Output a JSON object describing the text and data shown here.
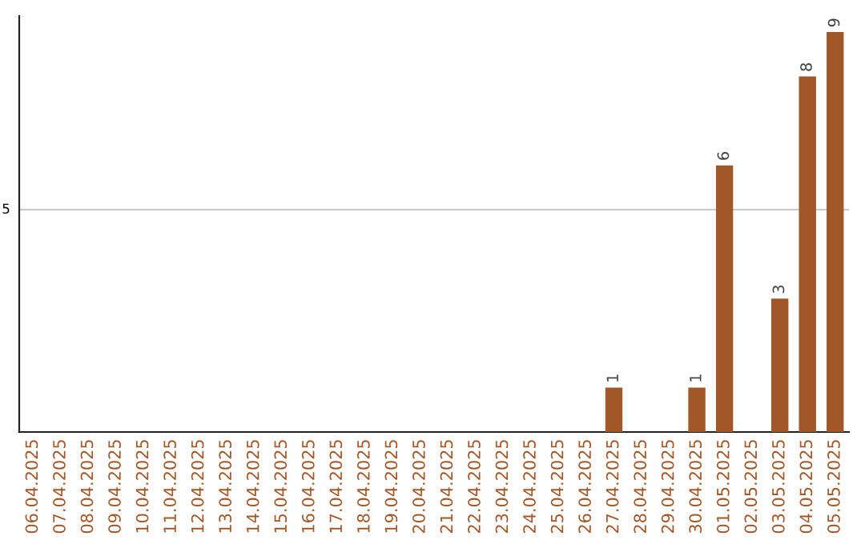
{
  "chart_data": {
    "type": "bar",
    "categories": [
      "06.04.2025",
      "07.04.2025",
      "08.04.2025",
      "09.04.2025",
      "10.04.2025",
      "11.04.2025",
      "12.04.2025",
      "13.04.2025",
      "14.04.2025",
      "15.04.2025",
      "16.04.2025",
      "17.04.2025",
      "18.04.2025",
      "19.04.2025",
      "20.04.2025",
      "21.04.2025",
      "22.04.2025",
      "23.04.2025",
      "24.04.2025",
      "25.04.2025",
      "26.04.2025",
      "27.04.2025",
      "28.04.2025",
      "29.04.2025",
      "30.04.2025",
      "01.05.2025",
      "02.05.2025",
      "03.05.2025",
      "04.05.2025",
      "05.05.2025"
    ],
    "values": [
      null,
      null,
      null,
      null,
      null,
      null,
      null,
      null,
      null,
      null,
      null,
      null,
      null,
      null,
      null,
      null,
      null,
      null,
      null,
      null,
      null,
      1,
      null,
      null,
      1,
      6,
      null,
      3,
      8,
      9
    ],
    "data_labels": true,
    "color": "#a0582a",
    "ref_lines": [
      {
        "axis": "y",
        "value": 5,
        "label": "5",
        "color": "#cccccc"
      }
    ]
  }
}
